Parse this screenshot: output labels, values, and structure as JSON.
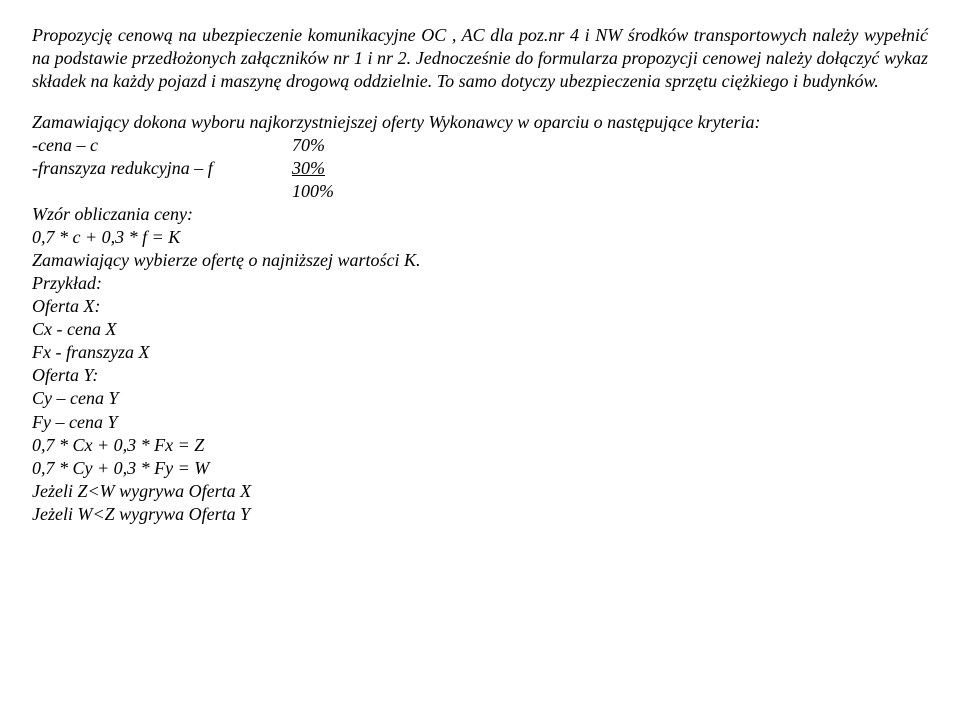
{
  "p1": "Propozycję cenową na ubezpieczenie komunikacyjne OC , AC dla poz.nr 4 i NW środków transportowych należy wypełnić na podstawie przedłożonych załączników nr 1 i nr 2. Jednocześnie do formularza propozycji cenowej należy dołączyć wykaz składek na każdy pojazd i maszynę drogową oddzielnie. To samo dotyczy ubezpieczenia sprzętu ciężkiego i budynków.",
  "p2_intro": "Zamawiający dokona wyboru najkorzystniejszej oferty Wykonawcy w oparciu o następujące kryteria:",
  "criteria": {
    "cena_label": "-cena – c",
    "cena_value": "70%",
    "franszyza_label": "-franszyza redukcyjna – f",
    "franszyza_value": "30%",
    "total": "100%"
  },
  "formula_heading": "Wzór obliczania ceny:",
  "formula": "0,7 * c + 0,3 * f = K",
  "select_rule": "Zamawiający wybierze ofertę o najniższej wartości K.",
  "example_heading": "Przykład:",
  "example": {
    "ox": "Oferta X:",
    "cx": "Cx - cena X",
    "fx": "Fx - franszyza X",
    "oy": "Oferta Y:",
    "cy": "Cy – cena Y",
    "fy": "Fy – cena Y",
    "eq1": "0,7 * Cx + 0,3 * Fx = Z",
    "eq2": "0,7 * Cy + 0,3 * Fy = W",
    "cond1": "Jeżeli Z<W wygrywa Oferta X",
    "cond2": "Jeżeli W<Z wygrywa Oferta Y"
  }
}
